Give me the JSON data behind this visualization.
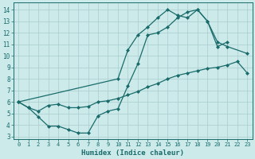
{
  "xlabel": "Humidex (Indice chaleur)",
  "bg_color": "#cceaea",
  "line_color": "#1a6b6b",
  "grid_color": "#aacccc",
  "xlim": [
    -0.5,
    23.5
  ],
  "ylim": [
    2.8,
    14.6
  ],
  "yticks": [
    3,
    4,
    5,
    6,
    7,
    8,
    9,
    10,
    11,
    12,
    13,
    14
  ],
  "xticks": [
    0,
    1,
    2,
    3,
    4,
    5,
    6,
    7,
    8,
    9,
    10,
    11,
    12,
    13,
    14,
    15,
    16,
    17,
    18,
    19,
    20,
    21,
    22,
    23
  ],
  "line1_x": [
    0,
    1,
    2,
    3,
    4,
    5,
    6,
    7,
    8,
    9,
    10,
    11,
    12,
    13,
    14,
    15,
    16,
    17,
    18,
    19,
    20,
    21
  ],
  "line1_y": [
    6.0,
    5.5,
    4.7,
    3.9,
    3.9,
    3.6,
    3.3,
    3.3,
    4.8,
    5.2,
    5.4,
    7.4,
    9.3,
    11.8,
    12.0,
    12.5,
    13.3,
    13.8,
    14.0,
    13.0,
    10.8,
    11.2
  ],
  "line2_x": [
    0,
    1,
    2,
    3,
    4,
    5,
    6,
    7,
    8,
    9,
    10,
    11,
    12,
    13,
    14,
    15,
    16,
    17,
    18,
    19,
    20,
    21,
    22,
    23
  ],
  "line2_y": [
    6.0,
    5.5,
    5.2,
    5.7,
    5.8,
    5.5,
    5.5,
    5.6,
    6.0,
    6.1,
    6.3,
    6.6,
    6.9,
    7.3,
    7.6,
    8.0,
    8.3,
    8.5,
    8.7,
    8.9,
    9.0,
    9.2,
    9.5,
    8.5
  ],
  "line3_x": [
    0,
    10,
    11,
    12,
    13,
    14,
    15,
    16,
    17,
    18,
    19,
    20,
    21,
    23
  ],
  "line3_y": [
    6.0,
    8.0,
    10.5,
    11.8,
    12.5,
    13.3,
    14.0,
    13.5,
    13.3,
    14.0,
    13.0,
    11.2,
    10.8,
    10.2
  ]
}
